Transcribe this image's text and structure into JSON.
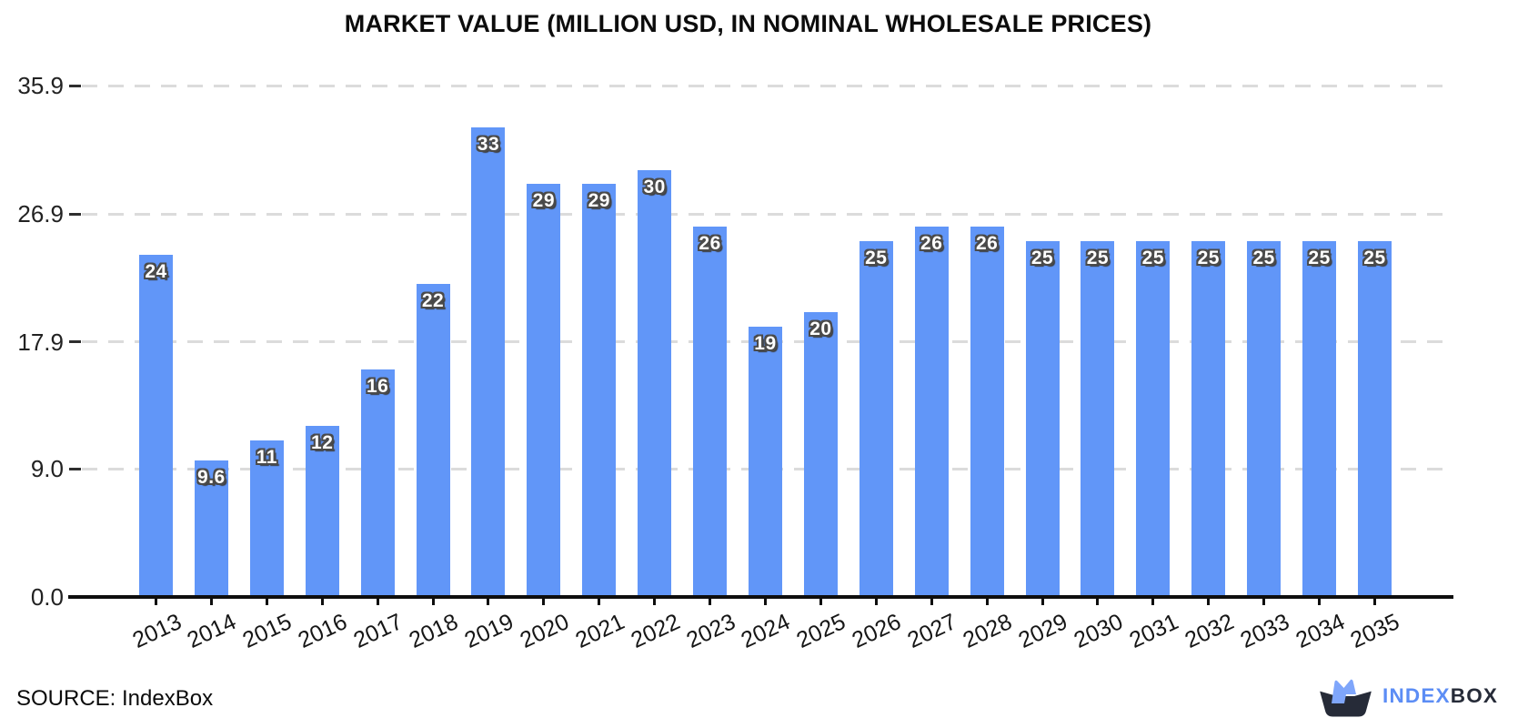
{
  "chart_data": {
    "type": "bar",
    "title": "MARKET VALUE (MILLION USD, IN NOMINAL WHOLESALE PRICES)",
    "categories": [
      "2013",
      "2014",
      "2015",
      "2016",
      "2017",
      "2018",
      "2019",
      "2020",
      "2021",
      "2022",
      "2023",
      "2024",
      "2025",
      "2026",
      "2027",
      "2028",
      "2029",
      "2030",
      "2031",
      "2032",
      "2033",
      "2034",
      "2035"
    ],
    "values": [
      24,
      9.6,
      11,
      12,
      16,
      22,
      33,
      29,
      29,
      30,
      26,
      19,
      20,
      25,
      26,
      26,
      25,
      25,
      25,
      25,
      25,
      25,
      25
    ],
    "bar_labels": [
      "24",
      "9.6",
      "11",
      "12",
      "16",
      "22",
      "33",
      "29",
      "29",
      "30",
      "26",
      "19",
      "20",
      "25",
      "26",
      "26",
      "25",
      "25",
      "25",
      "25",
      "25",
      "25",
      "25"
    ],
    "xlabel": "",
    "ylabel": "",
    "ylim": [
      0,
      38.5
    ],
    "yticks": [
      0,
      9,
      17.9,
      26.9,
      35.9
    ],
    "ytick_labels": [
      "0.0",
      "9.0",
      "17.9",
      "26.9",
      "35.9"
    ],
    "grid": "horizontal-dashed",
    "legend": "none"
  },
  "source": {
    "label": "SOURCE: IndexBox"
  },
  "logo": {
    "text_primary": "INDEX",
    "text_secondary": "BOX"
  },
  "colors": {
    "bar": "#6196F8",
    "grid": "#DBDBDB",
    "axis": "#0E0E0E",
    "value_label": "#FFFFFF",
    "value_label_outline": "#4A4A4A",
    "logo_blue": "#5C8DF5",
    "logo_crown": "#7FA6FB",
    "logo_dark": "#262B38"
  }
}
